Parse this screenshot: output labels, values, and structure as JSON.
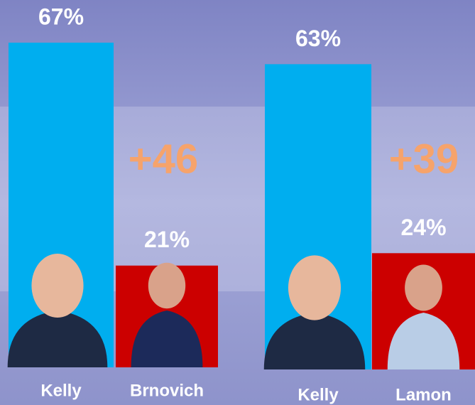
{
  "chart_data": [
    {
      "type": "bar",
      "categories": [
        "Kelly",
        "Brnovich"
      ],
      "values": [
        67,
        21
      ],
      "value_labels": [
        "67%",
        "21%"
      ],
      "colors": [
        "#00aeef",
        "#cc0000"
      ],
      "annotation": "+46"
    },
    {
      "type": "bar",
      "categories": [
        "Kelly",
        "Lamon"
      ],
      "values": [
        63,
        24
      ],
      "value_labels": [
        "63%",
        "24%"
      ],
      "colors": [
        "#00aeef",
        "#cc0000"
      ],
      "annotation": "+39"
    }
  ]
}
